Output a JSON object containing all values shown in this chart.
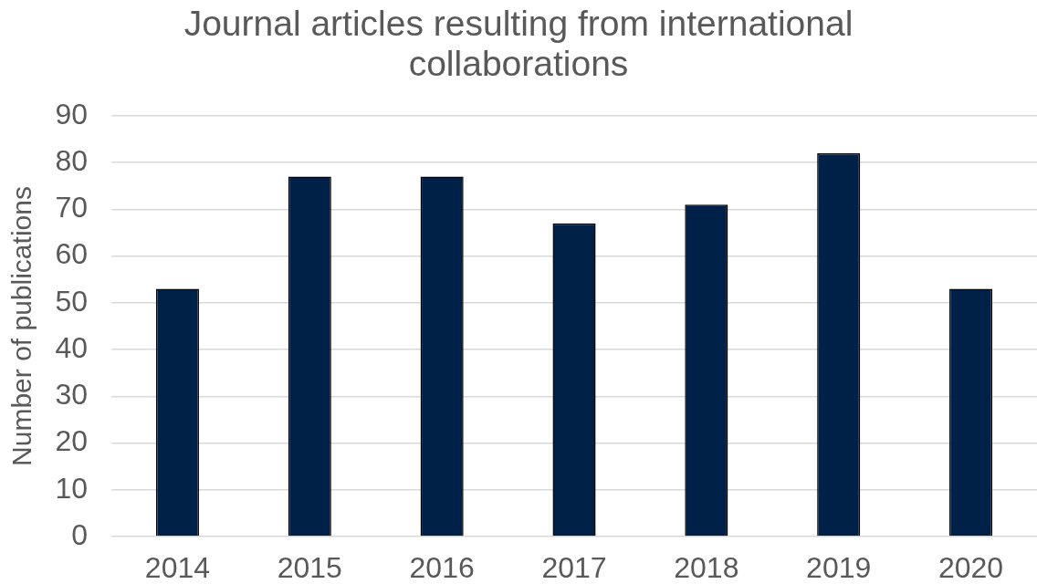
{
  "chart_data": {
    "type": "bar",
    "title": "Journal articles resulting from international collaborations",
    "ylabel": "Number of publications",
    "categories": [
      "2014",
      "2015",
      "2016",
      "2017",
      "2018",
      "2019",
      "2020"
    ],
    "values": [
      53,
      77,
      77,
      67,
      71,
      82,
      53
    ],
    "color": "#002147",
    "ylim": [
      0,
      90
    ],
    "yticks": [
      0,
      10,
      20,
      30,
      40,
      50,
      60,
      70,
      80,
      90
    ],
    "grid": "y"
  }
}
